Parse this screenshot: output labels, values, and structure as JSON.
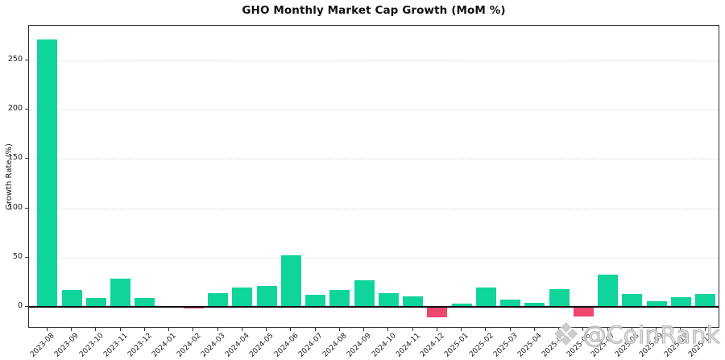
{
  "watermark": {
    "icon": "coinrank-diamond-logo",
    "icon_glyph": "❖",
    "text": "@CoinRank"
  },
  "chart_data": {
    "type": "bar",
    "title": "GHO Monthly Market Cap Growth (MoM %)",
    "xlabel": "",
    "ylabel": "Growth Rate (%)",
    "categories": [
      "2023-08",
      "2023-09",
      "2023-10",
      "2023-11",
      "2023-12",
      "2024-01",
      "2024-02",
      "2024-03",
      "2024-04",
      "2024-05",
      "2024-06",
      "2024-07",
      "2024-08",
      "2024-09",
      "2024-10",
      "2024-11",
      "2024-12",
      "2025-01",
      "2025-02",
      "2025-03",
      "2025-04",
      "2025-05",
      "2025-06",
      "2025-07",
      "2025-08",
      "2025-09",
      "2025-10",
      "2025-11"
    ],
    "values": [
      271,
      17,
      9,
      29,
      9,
      0.1,
      -0.6,
      14,
      20,
      21,
      52,
      12,
      17,
      27,
      14,
      11,
      -10,
      3,
      20,
      7,
      4,
      18,
      -9,
      33,
      13,
      6,
      10,
      13
    ],
    "yticks": [
      0,
      50,
      100,
      150,
      200,
      250
    ],
    "ylim": [
      -22,
      285
    ],
    "grid": "horizontal-dotted",
    "legend": "none",
    "positive_color": "#0FD49C",
    "negative_color": "#F0476F"
  }
}
